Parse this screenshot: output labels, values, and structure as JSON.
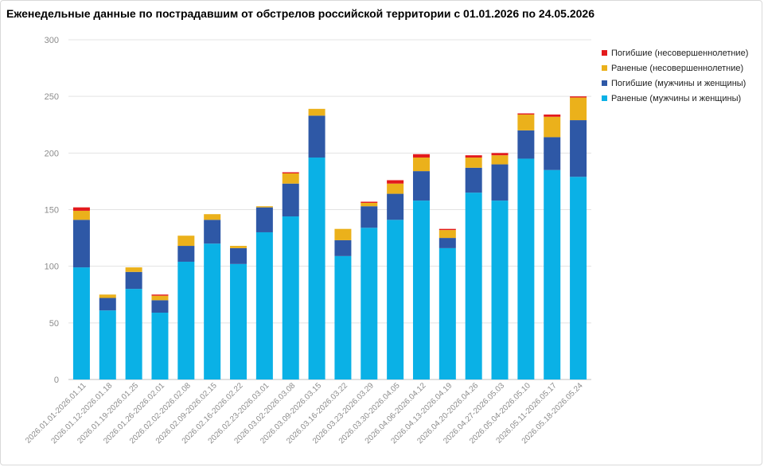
{
  "chart_data": {
    "type": "bar",
    "stacked": true,
    "title": "Еженедельные данные по пострадавшим от обстрелов российской территории с 01.01.2026 по 24.05.2026",
    "xlabel": "",
    "ylabel": "",
    "ylim": [
      0,
      300
    ],
    "yticks": [
      "0",
      "50",
      "100",
      "150",
      "200",
      "250",
      "300"
    ],
    "grid": true,
    "legend_position": "right",
    "categories": [
      "2026.01.01-2026.01.11",
      "2026.01.12-2026.01.18",
      "2026.01.19-2026.01.25",
      "2026.01.26-2026.02.01",
      "2026.02.02-2026.02.08",
      "2026.02.09-2026.02.15",
      "2026.02.16-2026.02.22",
      "2026.02.23-2026.03.01",
      "2026.03.02-2026.03.08",
      "2026.03.09-2026.03.15",
      "2026.03.16-2026.03.22",
      "2026.03.23-2026.03.29",
      "2026.03.30-2026.04.05",
      "2026.04.06-2026.04.12",
      "2026.04.13-2026.04.19",
      "2026.04.20-2026.04.26",
      "2026.04.27-2026.05.03",
      "2026.05.04-2026.05.10",
      "2026.05.11-2026.05.17",
      "2026.05.18-2026.05.24"
    ],
    "series": [
      {
        "name": "Раненые (мужчины и женщины)",
        "color": "#0AB1E6",
        "values": [
          99,
          61,
          80,
          59,
          104,
          120,
          102,
          130,
          144,
          196,
          109,
          134,
          141,
          158,
          116,
          165,
          158,
          195,
          185,
          179
        ]
      },
      {
        "name": "Погибшие (мужчины и женщины)",
        "color": "#2E58A6",
        "values": [
          42,
          11,
          15,
          11,
          14,
          21,
          14,
          22,
          29,
          37,
          14,
          19,
          23,
          26,
          9,
          22,
          32,
          25,
          29,
          50
        ]
      },
      {
        "name": "Раненые (несовершеннолетние)",
        "color": "#EBB11B",
        "values": [
          8,
          3,
          4,
          4,
          9,
          5,
          2,
          1,
          9,
          6,
          10,
          3,
          9,
          12,
          7,
          9,
          8,
          14,
          18,
          20
        ]
      },
      {
        "name": "Погибшие (несовершеннолетние)",
        "color": "#E31A1C",
        "values": [
          3,
          0,
          0,
          1,
          0,
          0,
          0,
          0,
          1,
          0,
          0,
          1,
          3,
          3,
          1,
          2,
          2,
          1,
          2,
          1
        ]
      }
    ]
  }
}
